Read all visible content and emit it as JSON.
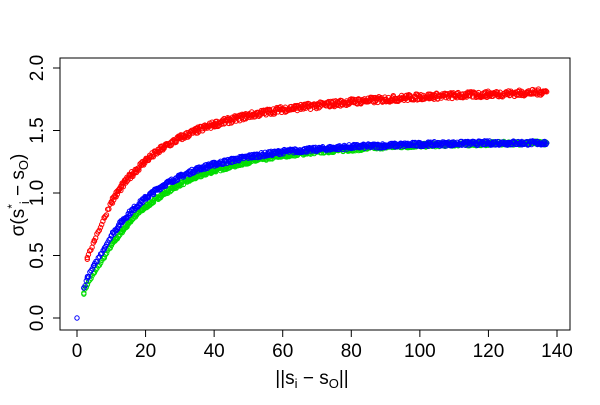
{
  "chart_data": {
    "type": "scatter",
    "title": "",
    "xlabel_parts": {
      "open": "||s",
      "sub_i": "i",
      "minus": " − s",
      "sub_o": "O",
      "close": "||"
    },
    "ylabel_parts": {
      "sigma": "σ(s",
      "star": "*",
      "sub_i": "i",
      "minus": " − s",
      "sub_o": "O",
      "close": ")"
    },
    "x_ticks": [
      "0",
      "20",
      "40",
      "60",
      "80",
      "100",
      "120",
      "140"
    ],
    "y_ticks": [
      "0.0",
      "0.5",
      "1.0",
      "1.5",
      "2.0"
    ],
    "xlim": [
      0,
      140
    ],
    "ylim": [
      0,
      2.0
    ],
    "grid": false,
    "legend": "none",
    "marker": "open-circle",
    "series": [
      {
        "color": "#ff0000",
        "x": [
          3,
          5,
          8,
          10,
          13,
          16,
          20,
          25,
          30,
          35,
          40,
          50,
          60,
          70,
          80,
          90,
          100,
          110,
          120,
          130,
          137
        ],
        "y": [
          0.47,
          0.62,
          0.8,
          0.93,
          1.05,
          1.15,
          1.26,
          1.36,
          1.44,
          1.5,
          1.55,
          1.62,
          1.67,
          1.7,
          1.73,
          1.75,
          1.77,
          1.78,
          1.79,
          1.8,
          1.81
        ],
        "spread": 0.05
      },
      {
        "color": "#0000ff",
        "x": [
          0,
          2,
          3,
          5,
          8,
          10,
          13,
          16,
          20,
          25,
          30,
          35,
          40,
          50,
          60,
          70,
          80,
          90,
          100,
          110,
          120,
          130,
          137
        ],
        "y": [
          0.0,
          0.24,
          0.32,
          0.42,
          0.56,
          0.66,
          0.77,
          0.86,
          0.96,
          1.06,
          1.13,
          1.19,
          1.23,
          1.29,
          1.33,
          1.35,
          1.37,
          1.38,
          1.39,
          1.395,
          1.4,
          1.4,
          1.4
        ],
        "spread": 0.035
      },
      {
        "color": "#00dd00",
        "x": [
          2,
          3,
          5,
          8,
          10,
          13,
          16,
          20,
          25,
          30,
          35,
          40,
          50,
          60,
          70,
          80,
          90,
          100,
          110,
          120,
          130,
          137
        ],
        "y": [
          0.2,
          0.27,
          0.36,
          0.49,
          0.58,
          0.69,
          0.79,
          0.89,
          0.99,
          1.07,
          1.13,
          1.18,
          1.25,
          1.3,
          1.33,
          1.35,
          1.37,
          1.38,
          1.39,
          1.395,
          1.4,
          1.4
        ],
        "spread": 0.03
      }
    ]
  }
}
